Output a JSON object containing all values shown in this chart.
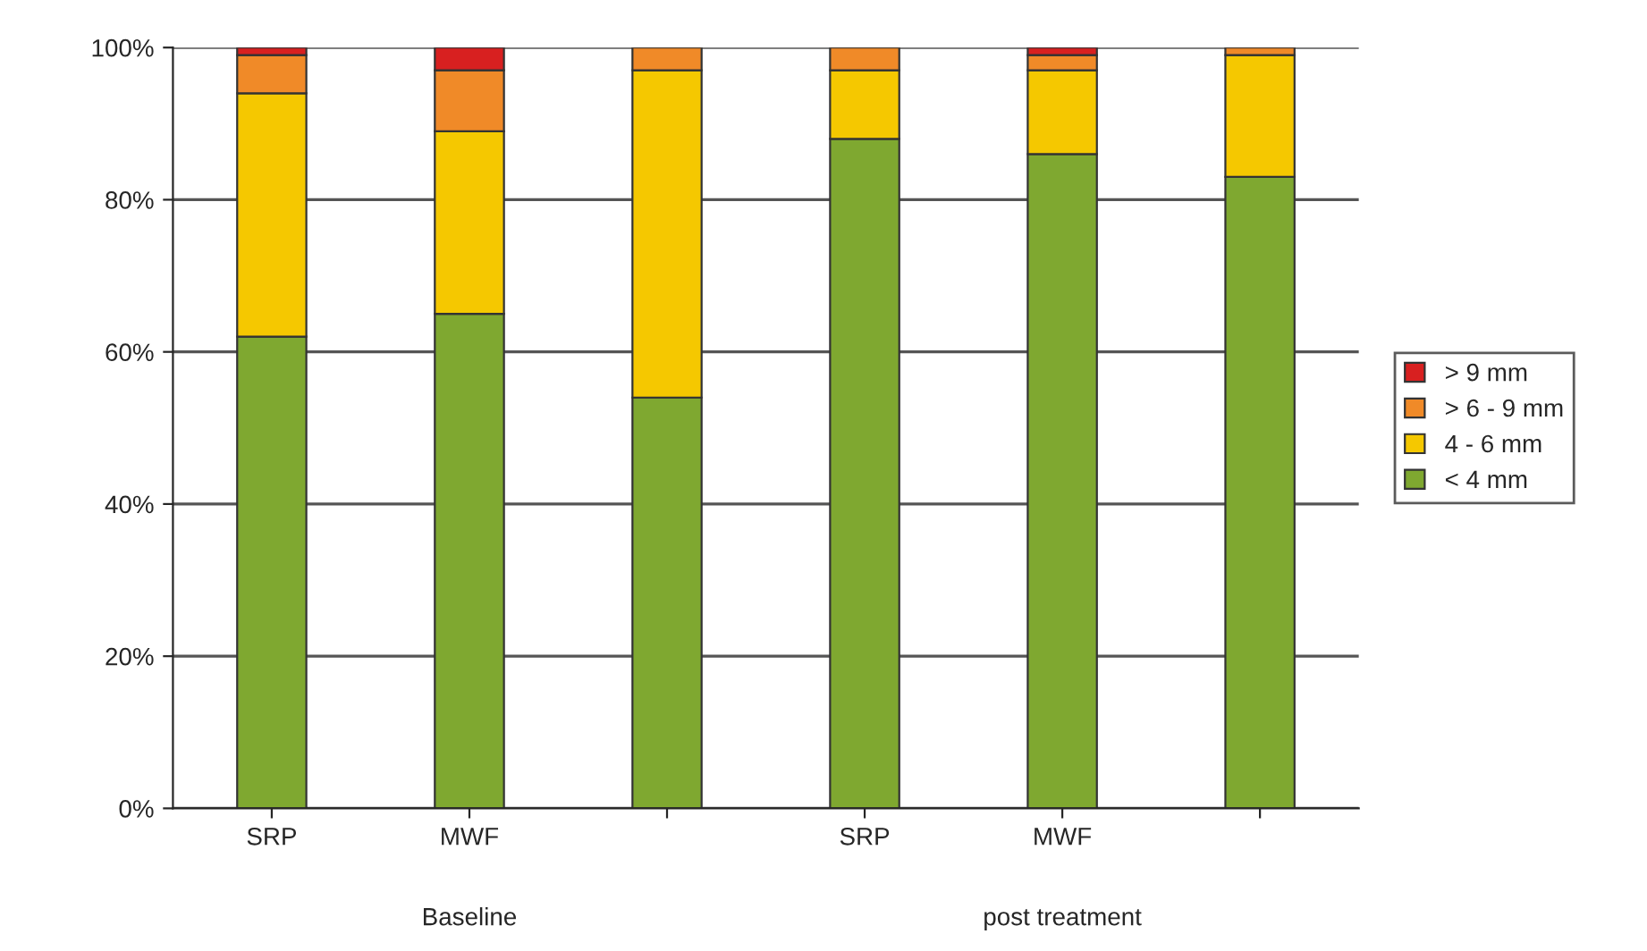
{
  "chart_data": {
    "type": "bar",
    "stacked": true,
    "categories": [
      "SRP",
      "MWF",
      null,
      "SRP",
      "MWF",
      null
    ],
    "series": [
      {
        "name": "< 4 mm",
        "color": "#7fa830",
        "values": [
          62,
          65,
          54,
          88,
          86,
          83
        ]
      },
      {
        "name": "4 - 6 mm",
        "color": "#f5c800",
        "values": [
          32,
          24,
          43,
          9,
          11,
          16
        ]
      },
      {
        "name": "> 6 - 9 mm",
        "color": "#f08a28",
        "values": [
          5,
          8,
          3,
          3,
          2,
          1
        ]
      },
      {
        "name": "> 9 mm",
        "color": "#d82020",
        "values": [
          1,
          3,
          0,
          0,
          1,
          0
        ]
      }
    ],
    "ylim": [
      0,
      100
    ],
    "yticks": [
      {
        "value": 0,
        "label": "0%"
      },
      {
        "value": 20,
        "label": "20%"
      },
      {
        "value": 40,
        "label": "40%"
      },
      {
        "value": 60,
        "label": "60%"
      },
      {
        "value": 80,
        "label": "80%"
      },
      {
        "value": 100,
        "label": "100%"
      }
    ],
    "annotations": [
      "Baseline",
      "post treatment"
    ],
    "grid": "y",
    "legend": "right"
  }
}
